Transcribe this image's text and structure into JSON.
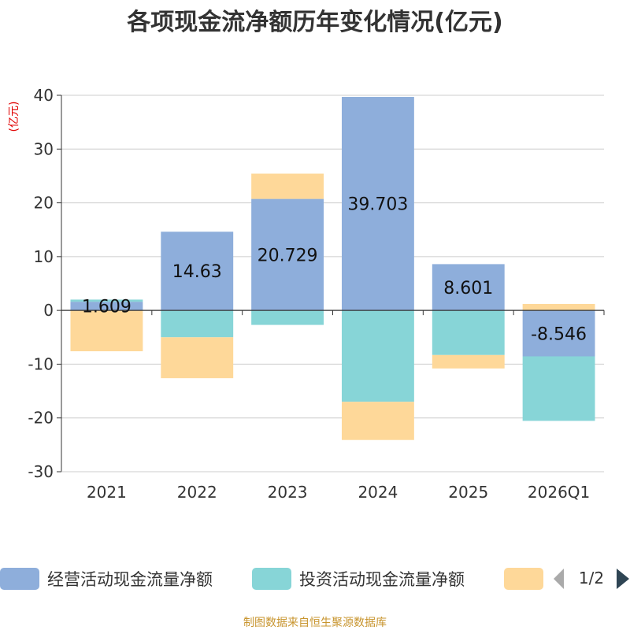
{
  "chart_data": {
    "type": "bar",
    "stacked": true,
    "title": "各项现金流净额历年变化情况(亿元)",
    "ylabel": "(亿元)",
    "xlabel": "",
    "categories": [
      "2021",
      "2022",
      "2023",
      "2024",
      "2025",
      "2026Q1"
    ],
    "ylim": [
      -30,
      40
    ],
    "yticks": [
      40,
      30,
      20,
      10,
      0,
      -10,
      -20,
      -30
    ],
    "grid": true,
    "series": [
      {
        "name": "经营活动现金流量净额",
        "color": "#8eaedb",
        "values": [
          1.609,
          14.63,
          20.729,
          39.703,
          8.601,
          -8.546
        ]
      },
      {
        "name": "投资活动现金流量净额",
        "color": "#87d5d7",
        "values": [
          0.4,
          -5.0,
          -2.7,
          -17.0,
          -8.3,
          -12.0
        ]
      },
      {
        "name": "",
        "color": "#fed899",
        "values": [
          -7.6,
          -7.6,
          4.7,
          -7.1,
          -2.5,
          1.2
        ]
      }
    ],
    "data_labels": [
      "1.609",
      "14.63",
      "20.729",
      "39.703",
      "8.601",
      "-8.546"
    ],
    "legend": {
      "position": "bottom",
      "page": "1/2"
    },
    "source": "制图数据来自恒生聚源数据库"
  }
}
